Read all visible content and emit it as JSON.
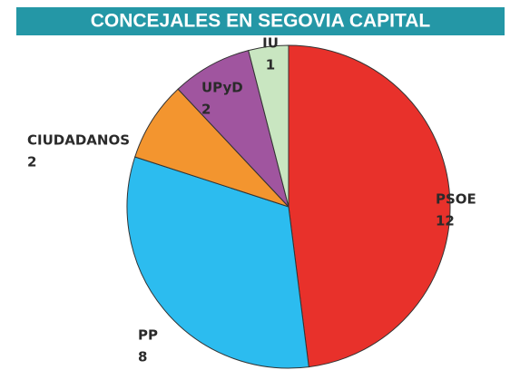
{
  "chart_data": {
    "type": "pie",
    "title": "CONCEJALES EN SEGOVIA CAPITAL",
    "categories": [
      "PSOE",
      "PP",
      "CIUDADANOS",
      "UPyD",
      "IU"
    ],
    "values": [
      12,
      8,
      2,
      2,
      1
    ],
    "colors": [
      "#e8312b",
      "#2cbcef",
      "#f3952f",
      "#a0559f",
      "#c9e6c1"
    ]
  }
}
